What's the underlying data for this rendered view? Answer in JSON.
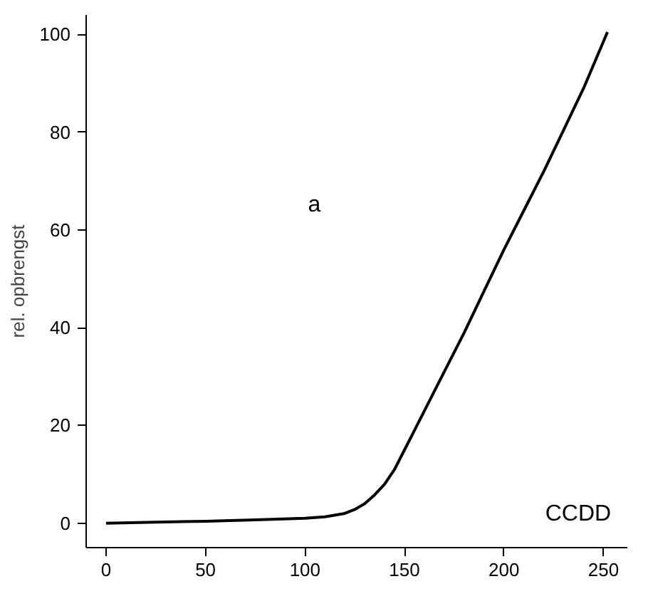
{
  "chart_data": {
    "type": "line",
    "ylabel": "rel. opbrengst",
    "annotations": [
      "a",
      "CCDD"
    ],
    "x": [
      0,
      25,
      50,
      75,
      100,
      110,
      120,
      125,
      130,
      135,
      140,
      145,
      150,
      155,
      160,
      170,
      180,
      190,
      200,
      210,
      220,
      230,
      240,
      252
    ],
    "series": [
      {
        "color": "#000000",
        "values": [
          0,
          0.2,
          0.4,
          0.7,
          1,
          1.3,
          2,
          2.8,
          4,
          5.8,
          8,
          11,
          15,
          19,
          23,
          31,
          39,
          47.5,
          56,
          64,
          72,
          80.5,
          89,
          100.5
        ]
      }
    ],
    "xlim": [
      -10,
      262
    ],
    "ylim": [
      -5,
      104
    ],
    "xticks": [
      0,
      50,
      100,
      150,
      200,
      250
    ],
    "yticks": [
      0,
      20,
      40,
      60,
      80,
      100
    ],
    "grid": false,
    "marker": "none",
    "line_style": "solid"
  }
}
